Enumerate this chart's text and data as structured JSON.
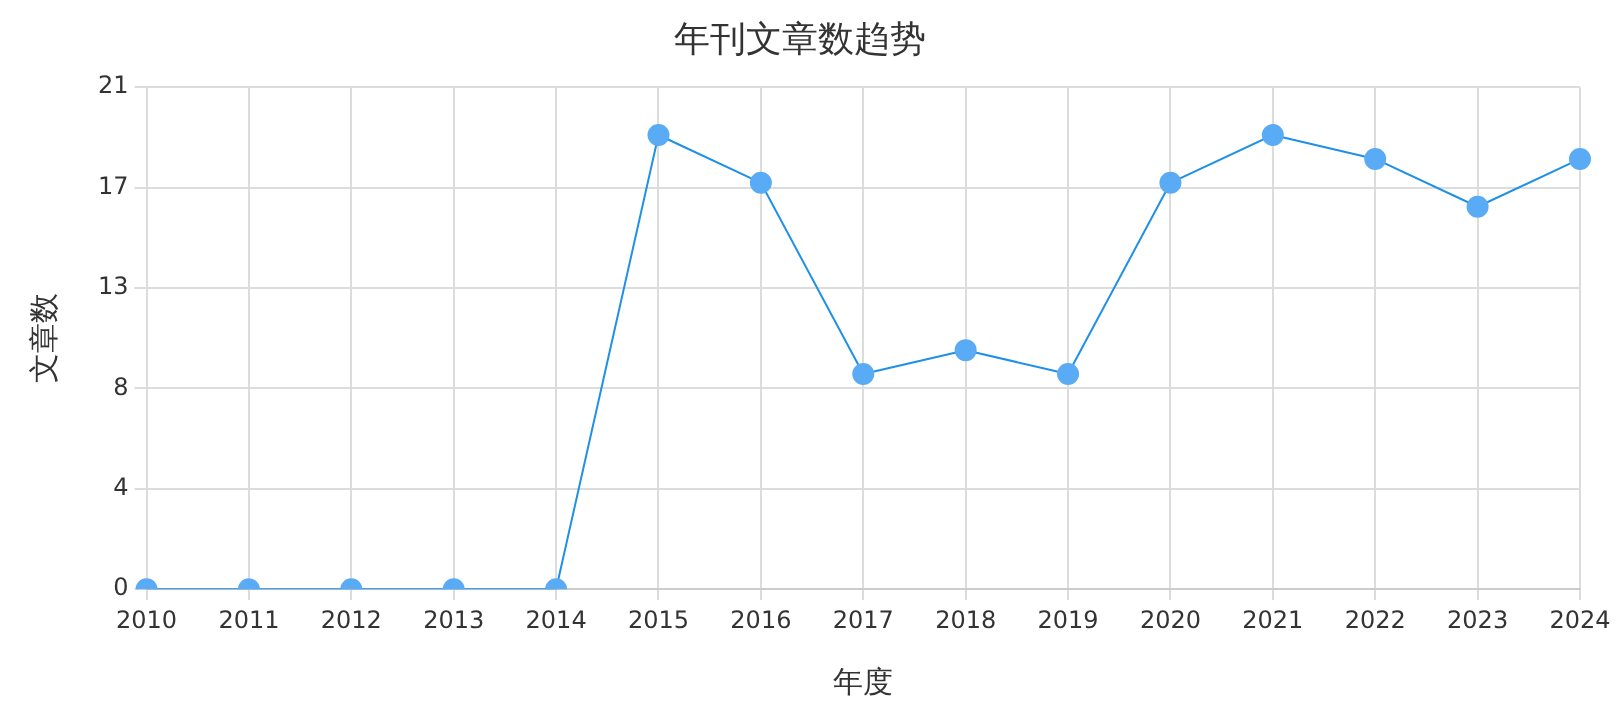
{
  "chart_data": {
    "type": "line",
    "title": "年刊文章数趋势",
    "xlabel": "年度",
    "ylabel": "文章数",
    "categories": [
      "2010",
      "2011",
      "2012",
      "2013",
      "2014",
      "2015",
      "2016",
      "2017",
      "2018",
      "2019",
      "2020",
      "2021",
      "2022",
      "2023",
      "2024"
    ],
    "series": [
      {
        "color": "#1e90e8",
        "values": [
          0,
          0,
          0,
          0,
          0,
          19,
          17,
          9,
          10,
          9,
          17,
          19,
          18,
          16,
          18
        ]
      }
    ],
    "ylim": [
      0,
      21
    ],
    "yticks": [
      0,
      {
        "value": 4.2,
        "label": "4"
      },
      {
        "value": 8.4,
        "label": "8"
      },
      {
        "value": 12.6,
        "label": "13"
      },
      {
        "value": 16.8,
        "label": "17"
      },
      21
    ],
    "grid": true,
    "legend": false,
    "marker": "circle",
    "line_style": "solid"
  }
}
